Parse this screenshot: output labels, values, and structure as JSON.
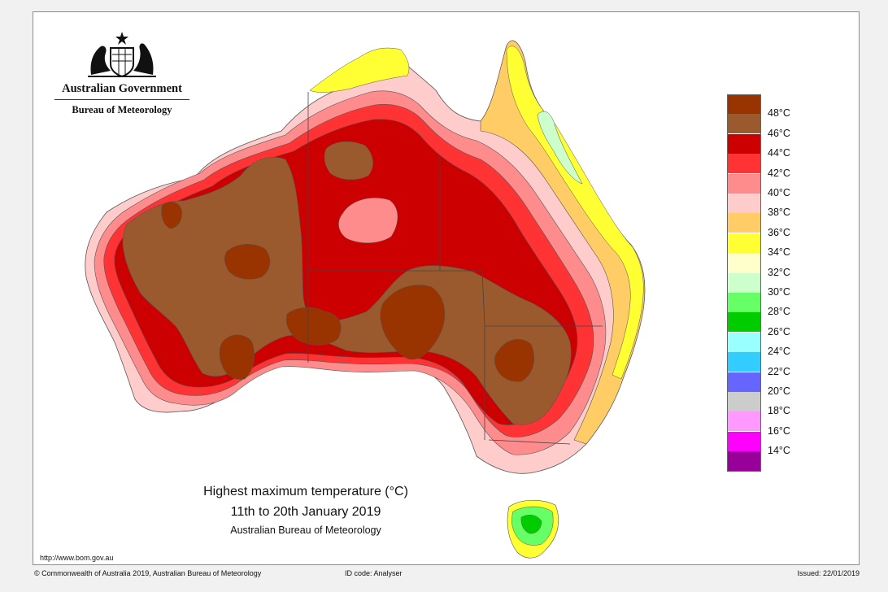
{
  "header": {
    "government": "Australian Government",
    "bureau": "Bureau of Meteorology"
  },
  "title": {
    "main": "Highest maximum temperature",
    "unit": "(°C)",
    "period": "11th to 20th January 2019",
    "source": "Australian Bureau of Meteorology"
  },
  "legend": {
    "items": [
      {
        "label": "48°C",
        "color": "#993300"
      },
      {
        "label": "46°C",
        "color": "#9b5a2d"
      },
      {
        "label": "44°C",
        "color": "#cc0000"
      },
      {
        "label": "42°C",
        "color": "#ff3333"
      },
      {
        "label": "40°C",
        "color": "#ff8c8c"
      },
      {
        "label": "38°C",
        "color": "#ffcccc"
      },
      {
        "label": "36°C",
        "color": "#ffcc66"
      },
      {
        "label": "34°C",
        "color": "#ffff33"
      },
      {
        "label": "32°C",
        "color": "#ffffcc"
      },
      {
        "label": "30°C",
        "color": "#ccffcc"
      },
      {
        "label": "28°C",
        "color": "#66ff66"
      },
      {
        "label": "26°C",
        "color": "#00cc00"
      },
      {
        "label": "24°C",
        "color": "#99ffff"
      },
      {
        "label": "22°C",
        "color": "#33ccff"
      },
      {
        "label": "20°C",
        "color": "#6666ff"
      },
      {
        "label": "18°C",
        "color": "#cccccc"
      },
      {
        "label": "16°C",
        "color": "#ff99ff"
      },
      {
        "label": "14°C",
        "color": "#ff00ff"
      },
      {
        "label": "",
        "color": "#990099"
      }
    ]
  },
  "footer": {
    "url": "http://www.bom.gov.au",
    "copyright": "© Commonwealth of Australia 2019, Australian Bureau of Meteorology",
    "id_code": "ID code: Analyser",
    "issued": "Issued: 22/01/2019"
  }
}
